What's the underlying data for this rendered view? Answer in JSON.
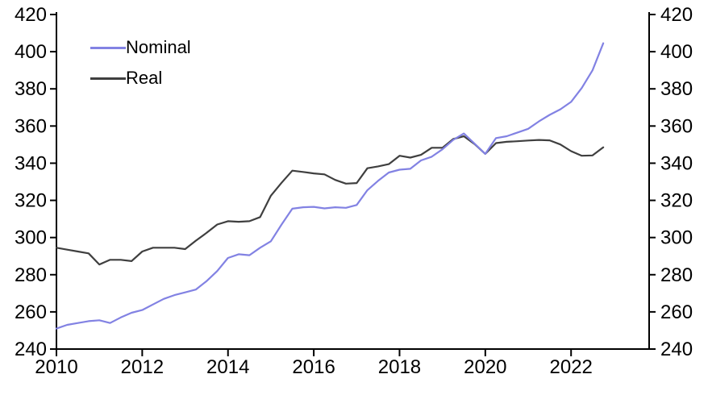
{
  "legend": {
    "items": [
      {
        "label": "Nominal",
        "color": "#8282e3"
      },
      {
        "label": "Real",
        "color": "#3f3f3f"
      }
    ]
  },
  "axes": {
    "y_ticks": [
      "240",
      "260",
      "280",
      "300",
      "320",
      "340",
      "360",
      "380",
      "400",
      "420"
    ],
    "x_ticks": [
      "2010",
      "2012",
      "2014",
      "2016",
      "2018",
      "2020",
      "2022"
    ],
    "y_min": 240,
    "y_max": 420
  },
  "chart_data": {
    "type": "line",
    "title": "",
    "xlabel": "",
    "ylabel": "",
    "grid": false,
    "legend_position": "top-left",
    "x_start": 2010.0,
    "x_step": 0.25,
    "xlim": [
      2010,
      2023.82
    ],
    "ylim": [
      240,
      420
    ],
    "x_tick_values": [
      2010,
      2012,
      2014,
      2016,
      2018,
      2020,
      2022
    ],
    "y_tick_values": [
      240,
      260,
      280,
      300,
      320,
      340,
      360,
      380,
      400,
      420
    ],
    "series": [
      {
        "name": "Nominal",
        "color": "#8282e3",
        "values": [
          251,
          253,
          254,
          255,
          255.5,
          254,
          257,
          259.5,
          261,
          264,
          267,
          269,
          270.5,
          272,
          276.5,
          282,
          289,
          291,
          290.5,
          294.5,
          298,
          307,
          315.5,
          316.3,
          316.5,
          315.7,
          316.3,
          316,
          317.5,
          325.5,
          330.5,
          335,
          336.5,
          337,
          341.5,
          343.5,
          347.5,
          352.5,
          356,
          350.5,
          345,
          353.5,
          354.5,
          356.5,
          358.5,
          362.5,
          366,
          369,
          373,
          380.5,
          390,
          404.5
        ]
      },
      {
        "name": "Real",
        "color": "#3f3f3f",
        "values": [
          294.5,
          293.5,
          292.5,
          291.5,
          285.5,
          288,
          288,
          287.3,
          292.5,
          294.5,
          294.5,
          294.5,
          293.8,
          298.3,
          302.5,
          307,
          308.8,
          308.5,
          308.8,
          311,
          322.5,
          329.5,
          336,
          335.3,
          334.5,
          334,
          331,
          329,
          329.3,
          337.3,
          338.3,
          339.5,
          344,
          343,
          344.5,
          348.3,
          348.3,
          353,
          354.5,
          350.3,
          345,
          350.8,
          351.5,
          351.8,
          352.2,
          352.5,
          352.3,
          350.1,
          346.5,
          344,
          344.2,
          348.5
        ]
      }
    ]
  }
}
